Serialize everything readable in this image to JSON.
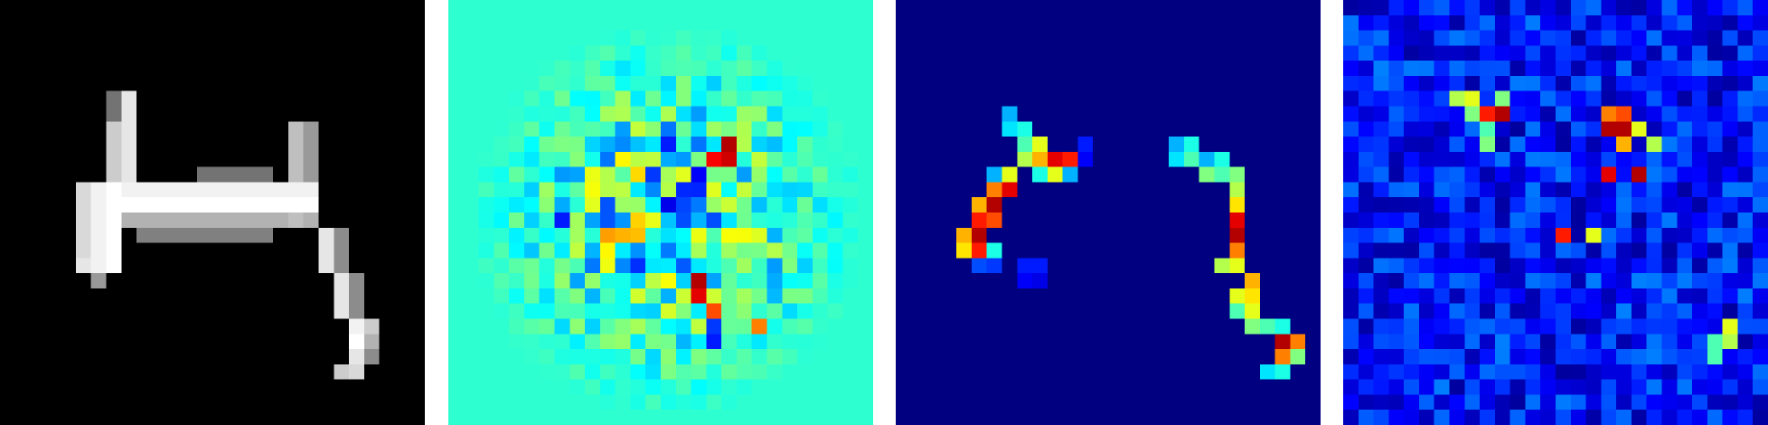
{
  "panels": [
    {
      "id": "input",
      "colormap": "gray"
    },
    {
      "id": "signed-attribution",
      "colormap": "jet"
    },
    {
      "id": "attribution-sparse",
      "colormap": "jet"
    },
    {
      "id": "attribution-noisy",
      "colormap": "jet"
    }
  ],
  "grid": 28,
  "colors": {
    "background": "#ffffff",
    "jet_low": "#00007f",
    "jet_high": "#7f0000",
    "gray_low": "#000000",
    "gray_high": "#ffffff"
  }
}
